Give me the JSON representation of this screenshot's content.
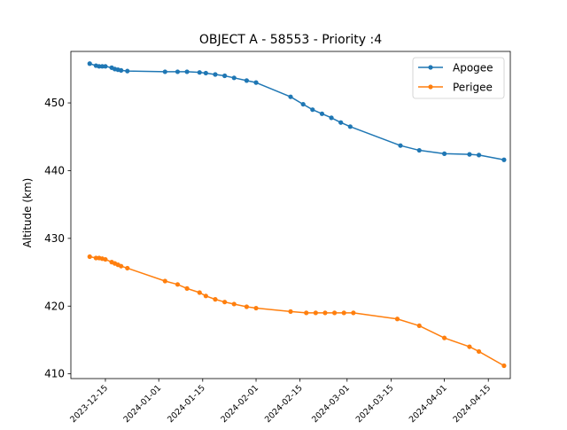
{
  "chart_data": {
    "type": "line",
    "title": "OBJECT A - 58553 - Priority :4",
    "xlabel": "",
    "ylabel": "Altitude (km)",
    "xlim": [
      "2023-12-04",
      "2024-04-22"
    ],
    "ylim": [
      409.3,
      457.6
    ],
    "yticks": [
      410,
      420,
      430,
      440,
      450
    ],
    "xticks": [
      "2023-12-15",
      "2024-01-01",
      "2024-01-15",
      "2024-02-01",
      "2024-02-15",
      "2024-03-01",
      "2024-03-15",
      "2024-04-01",
      "2024-04-15"
    ],
    "grid": false,
    "legend": "top-right",
    "series": [
      {
        "name": "Apogee",
        "color": "#1f77b4",
        "points": [
          [
            "2023-12-10",
            455.8
          ],
          [
            "2023-12-12",
            455.5
          ],
          [
            "2023-12-13",
            455.4
          ],
          [
            "2023-12-14",
            455.4
          ],
          [
            "2023-12-15",
            455.4
          ],
          [
            "2023-12-17",
            455.2
          ],
          [
            "2023-12-18",
            455.0
          ],
          [
            "2023-12-19",
            454.9
          ],
          [
            "2023-12-20",
            454.8
          ],
          [
            "2023-12-22",
            454.7
          ],
          [
            "2024-01-03",
            454.6
          ],
          [
            "2024-01-07",
            454.6
          ],
          [
            "2024-01-10",
            454.6
          ],
          [
            "2024-01-14",
            454.5
          ],
          [
            "2024-01-16",
            454.4
          ],
          [
            "2024-01-19",
            454.2
          ],
          [
            "2024-01-22",
            454.0
          ],
          [
            "2024-01-25",
            453.7
          ],
          [
            "2024-01-29",
            453.3
          ],
          [
            "2024-02-01",
            453.0
          ],
          [
            "2024-02-12",
            450.9
          ],
          [
            "2024-02-16",
            449.8
          ],
          [
            "2024-02-19",
            449.0
          ],
          [
            "2024-02-22",
            448.4
          ],
          [
            "2024-02-25",
            447.8
          ],
          [
            "2024-02-28",
            447.1
          ],
          [
            "2024-03-02",
            446.5
          ],
          [
            "2024-03-18",
            443.7
          ],
          [
            "2024-03-24",
            443.0
          ],
          [
            "2024-04-01",
            442.5
          ],
          [
            "2024-04-09",
            442.4
          ],
          [
            "2024-04-12",
            442.3
          ],
          [
            "2024-04-20",
            441.6
          ]
        ]
      },
      {
        "name": "Perigee",
        "color": "#ff7f0e",
        "points": [
          [
            "2023-12-10",
            427.3
          ],
          [
            "2023-12-12",
            427.1
          ],
          [
            "2023-12-13",
            427.1
          ],
          [
            "2023-12-14",
            427.0
          ],
          [
            "2023-12-15",
            426.9
          ],
          [
            "2023-12-17",
            426.5
          ],
          [
            "2023-12-18",
            426.3
          ],
          [
            "2023-12-19",
            426.1
          ],
          [
            "2023-12-20",
            425.9
          ],
          [
            "2023-12-22",
            425.6
          ],
          [
            "2024-01-03",
            423.7
          ],
          [
            "2024-01-07",
            423.2
          ],
          [
            "2024-01-10",
            422.6
          ],
          [
            "2024-01-14",
            422.0
          ],
          [
            "2024-01-16",
            421.5
          ],
          [
            "2024-01-19",
            421.0
          ],
          [
            "2024-01-22",
            420.6
          ],
          [
            "2024-01-25",
            420.3
          ],
          [
            "2024-01-29",
            419.9
          ],
          [
            "2024-02-01",
            419.7
          ],
          [
            "2024-02-12",
            419.2
          ],
          [
            "2024-02-17",
            419.0
          ],
          [
            "2024-02-20",
            419.0
          ],
          [
            "2024-02-23",
            419.0
          ],
          [
            "2024-02-26",
            419.0
          ],
          [
            "2024-02-29",
            419.0
          ],
          [
            "2024-03-03",
            419.0
          ],
          [
            "2024-03-17",
            418.1
          ],
          [
            "2024-03-24",
            417.1
          ],
          [
            "2024-04-01",
            415.3
          ],
          [
            "2024-04-09",
            414.0
          ],
          [
            "2024-04-12",
            413.3
          ],
          [
            "2024-04-20",
            411.2
          ]
        ]
      }
    ]
  }
}
